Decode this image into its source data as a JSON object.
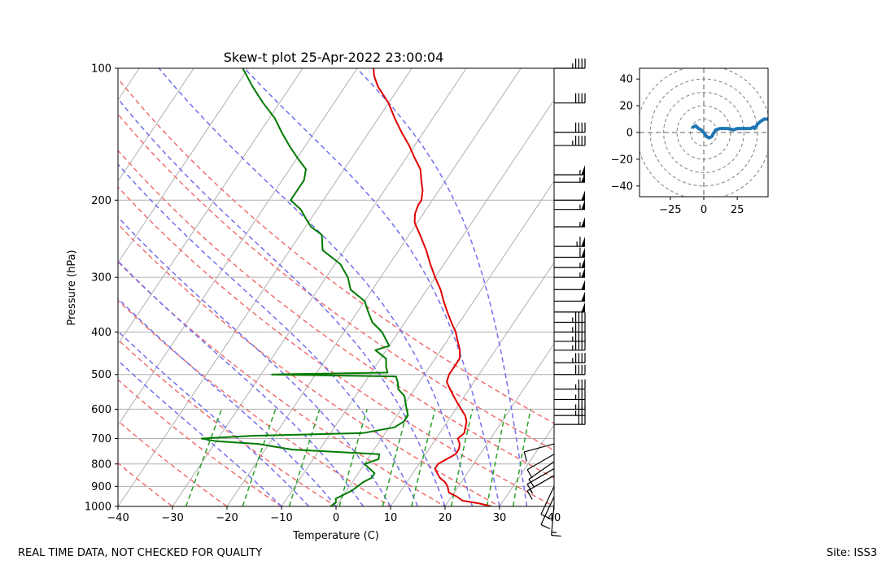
{
  "footer": {
    "left": "REAL TIME DATA, NOT CHECKED FOR QUALITY",
    "right": "Site: ISS3"
  },
  "colors": {
    "temperature": "#e00000",
    "dewpoint": "#007a00",
    "isotherm": "#b0b0b0",
    "dry_adiabat": "#f07070",
    "moist_adiabat": "#7070ee",
    "mixing_ratio": "#2ca02c",
    "hodograph_trace": "#1f77b4",
    "hodograph_ring": "#808080"
  },
  "chart_data": [
    {
      "type": "line",
      "subtype": "skew-t",
      "title": "Skew-t plot 25-Apr-2022 23:00:04",
      "xlabel": "Temperature (C)",
      "ylabel": "Pressure (hPa)",
      "xlim": [
        -40,
        40
      ],
      "ylim": [
        1000,
        100
      ],
      "y_scale": "log",
      "x_ticks": [
        -40,
        -30,
        -20,
        -10,
        0,
        10,
        20,
        30,
        40
      ],
      "x_tick_labels": [
        "−40",
        "−30",
        "−20",
        "−10",
        "0",
        "10",
        "20",
        "30",
        "40"
      ],
      "y_ticks": [
        1000,
        900,
        800,
        700,
        600,
        500,
        400,
        300,
        200,
        100
      ],
      "y_tick_labels": [
        "1000",
        "900",
        "800",
        "700",
        "600",
        "500",
        "400",
        "300",
        "200",
        "100"
      ],
      "grid": true,
      "background_lines": {
        "isotherms_C": [
          -140,
          -130,
          -120,
          -110,
          -100,
          -90,
          -80,
          -70,
          -60,
          -50,
          -40,
          -30,
          -20,
          -10,
          0,
          10,
          20,
          30,
          40
        ],
        "dry_adiabats_C": [
          -30,
          -20,
          -10,
          0,
          10,
          20,
          30,
          40,
          50,
          60,
          70
        ],
        "moist_adiabats_C": [
          -10,
          -5,
          0,
          5,
          10,
          15,
          20,
          25,
          30,
          35
        ],
        "mixing_ratio_lines_top_hPa": 600
      },
      "series": [
        {
          "role": "temperature",
          "points": [
            [
              1000,
              28.5
            ],
            [
              985,
              26
            ],
            [
              970,
              22.5
            ],
            [
              950,
              21
            ],
            [
              930,
              19
            ],
            [
              900,
              18
            ],
            [
              880,
              17
            ],
            [
              860,
              15.5
            ],
            [
              840,
              14.5
            ],
            [
              820,
              13.5
            ],
            [
              800,
              13.5
            ],
            [
              780,
              14.5
            ],
            [
              760,
              15.5
            ],
            [
              740,
              15.5
            ],
            [
              720,
              15
            ],
            [
              700,
              14
            ],
            [
              680,
              14.5
            ],
            [
              660,
              14
            ],
            [
              640,
              13.5
            ],
            [
              620,
              12.5
            ],
            [
              600,
              11
            ],
            [
              580,
              9.5
            ],
            [
              560,
              8
            ],
            [
              540,
              6.5
            ],
            [
              520,
              5
            ],
            [
              500,
              4.5
            ],
            [
              480,
              4.5
            ],
            [
              460,
              4.5
            ],
            [
              440,
              3.5
            ],
            [
              420,
              2
            ],
            [
              400,
              0.5
            ],
            [
              380,
              -1.5
            ],
            [
              360,
              -3.5
            ],
            [
              340,
              -5.5
            ],
            [
              320,
              -7.5
            ],
            [
              300,
              -10
            ],
            [
              280,
              -12.5
            ],
            [
              260,
              -15
            ],
            [
              240,
              -18
            ],
            [
              225,
              -20.5
            ],
            [
              215,
              -21.5
            ],
            [
              205,
              -22
            ],
            [
              200,
              -22
            ],
            [
              190,
              -23
            ],
            [
              180,
              -24.5
            ],
            [
              170,
              -26
            ],
            [
              160,
              -28.5
            ],
            [
              150,
              -31
            ],
            [
              140,
              -34
            ],
            [
              130,
              -37
            ],
            [
              120,
              -40
            ],
            [
              110,
              -44
            ],
            [
              104,
              -46
            ],
            [
              100,
              -47
            ]
          ]
        },
        {
          "role": "dewpoint",
          "points": [
            [
              1000,
              -1
            ],
            [
              980,
              -0.5
            ],
            [
              960,
              -1
            ],
            [
              940,
              0
            ],
            [
              920,
              1
            ],
            [
              900,
              1.5
            ],
            [
              880,
              2
            ],
            [
              860,
              3
            ],
            [
              840,
              3
            ],
            [
              820,
              1.5
            ],
            [
              800,
              0
            ],
            [
              780,
              2
            ],
            [
              760,
              1.5
            ],
            [
              742,
              -15
            ],
            [
              720,
              -22
            ],
            [
              710,
              -30
            ],
            [
              700,
              -33
            ],
            [
              690,
              -24
            ],
            [
              680,
              -4
            ],
            [
              660,
              1
            ],
            [
              640,
              2
            ],
            [
              620,
              2
            ],
            [
              600,
              1
            ],
            [
              580,
              0
            ],
            [
              560,
              -1
            ],
            [
              540,
              -3
            ],
            [
              520,
              -4
            ],
            [
              505,
              -5
            ],
            [
              500,
              -28
            ],
            [
              495,
              -7
            ],
            [
              480,
              -8
            ],
            [
              460,
              -9
            ],
            [
              440,
              -12
            ],
            [
              430,
              -10
            ],
            [
              420,
              -11
            ],
            [
              400,
              -13
            ],
            [
              380,
              -16
            ],
            [
              360,
              -18
            ],
            [
              340,
              -20
            ],
            [
              320,
              -24
            ],
            [
              300,
              -26
            ],
            [
              280,
              -29
            ],
            [
              260,
              -34
            ],
            [
              240,
              -36
            ],
            [
              230,
              -39
            ],
            [
              220,
              -41
            ],
            [
              210,
              -43
            ],
            [
              200,
              -46
            ],
            [
              190,
              -46
            ],
            [
              180,
              -46
            ],
            [
              170,
              -47
            ],
            [
              160,
              -50
            ],
            [
              150,
              -53
            ],
            [
              140,
              -56
            ],
            [
              130,
              -59
            ],
            [
              120,
              -63
            ],
            [
              110,
              -67
            ],
            [
              100,
              -71
            ]
          ]
        }
      ],
      "wind_barbs": {
        "x_position_C": 40,
        "barbs": [
          [
            990,
            14,
            5
          ],
          [
            950,
            12,
            25
          ],
          [
            900,
            10,
            25
          ],
          [
            850,
            15,
            60
          ],
          [
            820,
            10,
            60
          ],
          [
            790,
            8,
            55
          ],
          [
            760,
            10,
            60
          ],
          [
            720,
            12,
            75
          ],
          [
            650,
            30,
            270
          ],
          [
            620,
            35,
            270
          ],
          [
            600,
            35,
            270
          ],
          [
            570,
            35,
            270
          ],
          [
            540,
            35,
            270
          ],
          [
            500,
            40,
            270
          ],
          [
            470,
            45,
            270
          ],
          [
            440,
            45,
            270
          ],
          [
            420,
            45,
            270
          ],
          [
            400,
            45,
            270
          ],
          [
            380,
            45,
            270
          ],
          [
            360,
            50,
            270
          ],
          [
            340,
            50,
            270
          ],
          [
            320,
            50,
            270
          ],
          [
            300,
            55,
            270
          ],
          [
            285,
            55,
            270
          ],
          [
            270,
            60,
            270
          ],
          [
            255,
            65,
            270
          ],
          [
            230,
            55,
            270
          ],
          [
            210,
            55,
            270
          ],
          [
            200,
            50,
            270
          ],
          [
            182,
            55,
            270
          ],
          [
            175,
            55,
            270
          ],
          [
            150,
            45,
            270
          ],
          [
            140,
            40,
            270
          ],
          [
            120,
            40,
            270
          ],
          [
            100,
            45,
            270
          ]
        ]
      }
    },
    {
      "type": "line",
      "subtype": "hodograph",
      "title": "",
      "xlim": [
        -48,
        48
      ],
      "ylim": [
        -48,
        48
      ],
      "x_ticks": [
        -25,
        0,
        25
      ],
      "x_tick_labels": [
        "−25",
        "0",
        "25"
      ],
      "y_ticks": [
        -40,
        -20,
        0,
        20,
        40
      ],
      "y_tick_labels": [
        "−40",
        "−20",
        "0",
        "20",
        "40"
      ],
      "rings": [
        10,
        20,
        30,
        40,
        50
      ],
      "points": [
        [
          -8,
          4
        ],
        [
          -6,
          5
        ],
        [
          -4,
          3
        ],
        [
          -2,
          2
        ],
        [
          0,
          0
        ],
        [
          2,
          -3
        ],
        [
          4,
          -4
        ],
        [
          6,
          -3
        ],
        [
          7,
          -1
        ],
        [
          9,
          2
        ],
        [
          12,
          3
        ],
        [
          15,
          3
        ],
        [
          18,
          3
        ],
        [
          22,
          2
        ],
        [
          25,
          3
        ],
        [
          30,
          3
        ],
        [
          35,
          3
        ],
        [
          37,
          4
        ],
        [
          38,
          3
        ],
        [
          40,
          6
        ],
        [
          42,
          8
        ],
        [
          45,
          10
        ],
        [
          48,
          10
        ]
      ]
    }
  ]
}
